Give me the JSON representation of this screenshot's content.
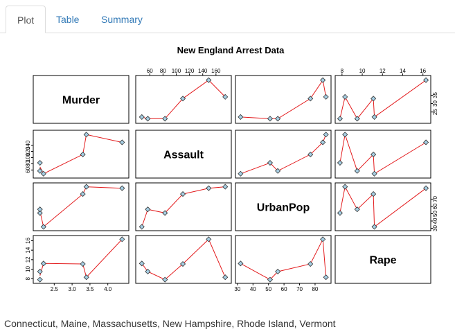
{
  "tabs": [
    {
      "label": "Plot",
      "active": true
    },
    {
      "label": "Table",
      "active": false
    },
    {
      "label": "Summary",
      "active": false
    }
  ],
  "colors": {
    "tab_link": "#337ab7",
    "point_fill": "#a6cee3",
    "smooth_line": "#e31a1c"
  },
  "chart_data": {
    "type": "scatter",
    "subtype": "scatterplot-matrix",
    "title": "New England Arrest Data",
    "variables": [
      "Murder",
      "Assault",
      "UrbanPop",
      "Rape"
    ],
    "states": [
      "Connecticut",
      "Maine",
      "Massachusetts",
      "New Hampshire",
      "Rhode Island",
      "Vermont"
    ],
    "values": {
      "Murder": [
        3.3,
        2.1,
        4.4,
        2.1,
        3.4,
        2.2
      ],
      "Assault": [
        110,
        83,
        149,
        57,
        174,
        48
      ],
      "UrbanPop": [
        77,
        51,
        85,
        56,
        87,
        32
      ],
      "Rape": [
        11.1,
        7.8,
        16.3,
        9.5,
        8.3,
        11.2
      ]
    },
    "ranges": {
      "Murder": [
        1.99,
        4.51
      ],
      "Assault": [
        43,
        179
      ],
      "UrbanPop": [
        30.5,
        88.5
      ],
      "Rape": [
        7.6,
        16.5
      ]
    },
    "ticks": {
      "Murder": [
        "2.5",
        "3.0",
        "3.5",
        "4.0"
      ],
      "Assault": [
        "60",
        "80",
        "100",
        "120",
        "140",
        "160"
      ],
      "UrbanPop": [
        "30",
        "40",
        "50",
        "60",
        "70",
        "80"
      ],
      "Rape": [
        "8",
        "10",
        "12",
        "14",
        "16"
      ]
    },
    "tick_values": {
      "Murder": [
        2.5,
        3.0,
        3.5,
        4.0
      ],
      "Assault": [
        60,
        80,
        100,
        120,
        140,
        160
      ],
      "UrbanPop": [
        30,
        40,
        50,
        60,
        70,
        80
      ],
      "Rape": [
        8,
        10,
        12,
        14,
        16
      ]
    },
    "tick_placement": {
      "Murder": {
        "side": "bottom"
      },
      "Assault": {
        "side": "top",
        "left_ticks": [
          "60",
          "80",
          "100",
          "120",
          "140"
        ]
      },
      "UrbanPop": {
        "side": "bottom",
        "right_ticks": [
          "30",
          "40",
          "50",
          "60",
          "70"
        ]
      },
      "Rape": {
        "side": "top",
        "right_ticks": [
          "25",
          "30",
          "35"
        ],
        "right_tick_values": [
          2.5,
          3.0,
          3.5
        ],
        "left_ticks": [
          "8",
          "10",
          "12",
          "14",
          "16"
        ]
      }
    },
    "point_marker": "diamond",
    "smoother": "lowess",
    "grid": false,
    "legend": "none"
  },
  "caption": "Connecticut, Maine, Massachusetts, New Hampshire, Rhode Island, Vermont"
}
